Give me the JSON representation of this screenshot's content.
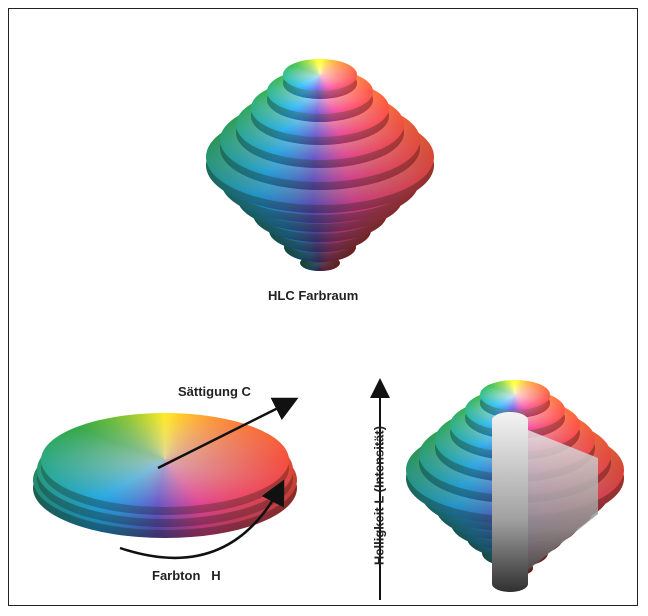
{
  "title": "HLC Farbraum",
  "labels": {
    "saturation": "Sättigung C",
    "hue": "Farbton   H",
    "lightness": "Helligkeit L (Intensität)"
  }
}
